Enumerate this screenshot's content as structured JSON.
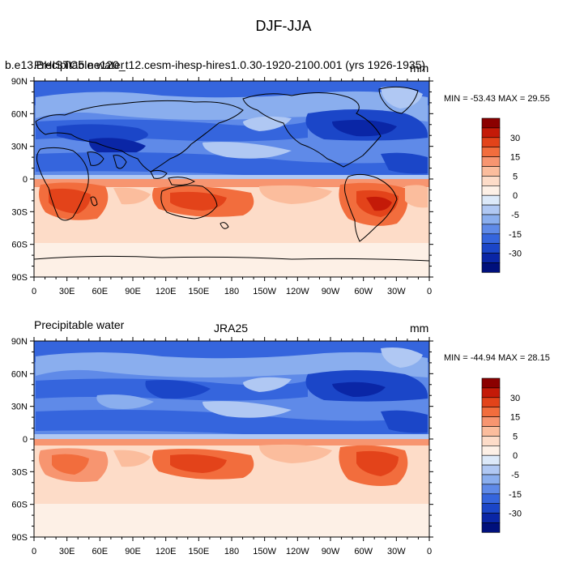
{
  "figure": {
    "title": "DJF-JJA"
  },
  "panels": [
    {
      "left_title": "Precipitable water",
      "center_title": "b.e13.BHISTC5.ne120_t12.cesm-ihesp-hires1.0.30-1920-2100.001 (yrs 1926-1935)",
      "right_title": "mm",
      "stats": "MIN = -53.43 MAX =  29.55"
    },
    {
      "left_title": "Precipitable water",
      "center_title": "JRA25",
      "right_title": "mm",
      "stats": "MIN = -44.94 MAX =  28.15"
    }
  ],
  "axes": {
    "lat_ticks": [
      "90N",
      "60N",
      "30N",
      "0",
      "30S",
      "60S",
      "90S"
    ],
    "lon_ticks": [
      "0",
      "30E",
      "60E",
      "90E",
      "120E",
      "150E",
      "180",
      "150W",
      "120W",
      "90W",
      "60W",
      "30W",
      "0"
    ]
  },
  "colorbar": {
    "labels": [
      "30",
      "15",
      "5",
      "0",
      "-5",
      "-15",
      "-30"
    ],
    "colors": [
      "#8b0000",
      "#c41a08",
      "#e3431a",
      "#f26d3d",
      "#f79570",
      "#fbbd9d",
      "#fddcc8",
      "#fdf0e6",
      "#dce9f9",
      "#b0c8f3",
      "#8aaeee",
      "#5f8ae8",
      "#3565dd",
      "#1b46c8",
      "#0a26a6",
      "#00107c"
    ]
  },
  "chart_data": [
    {
      "type": "heatmap",
      "title": "DJF-JJA",
      "variable": "Precipitable water",
      "units": "mm",
      "dataset": "b.e13.BHISTC5.ne120_t12.cesm-ihesp-hires1.0.30-1920-2100.001 (yrs 1926-1935)",
      "x_ticks": [
        "0",
        "30E",
        "60E",
        "90E",
        "120E",
        "150E",
        "180",
        "150W",
        "120W",
        "90W",
        "60W",
        "30W",
        "0"
      ],
      "y_ticks": [
        "90N",
        "60N",
        "30N",
        "0",
        "30S",
        "60S",
        "90S"
      ],
      "min": -53.43,
      "max": 29.55,
      "colorbar_labels": [
        30,
        15,
        5,
        0,
        -5,
        -15,
        -30
      ]
    },
    {
      "type": "heatmap",
      "title": "DJF-JJA",
      "variable": "Precipitable water",
      "units": "mm",
      "dataset": "JRA25",
      "x_ticks": [
        "0",
        "30E",
        "60E",
        "90E",
        "120E",
        "150E",
        "180",
        "150W",
        "120W",
        "90W",
        "60W",
        "30W",
        "0"
      ],
      "y_ticks": [
        "90N",
        "60N",
        "30N",
        "0",
        "30S",
        "60S",
        "90S"
      ],
      "min": -44.94,
      "max": 28.15,
      "colorbar_labels": [
        30,
        15,
        5,
        0,
        -5,
        -15,
        -30
      ]
    }
  ]
}
